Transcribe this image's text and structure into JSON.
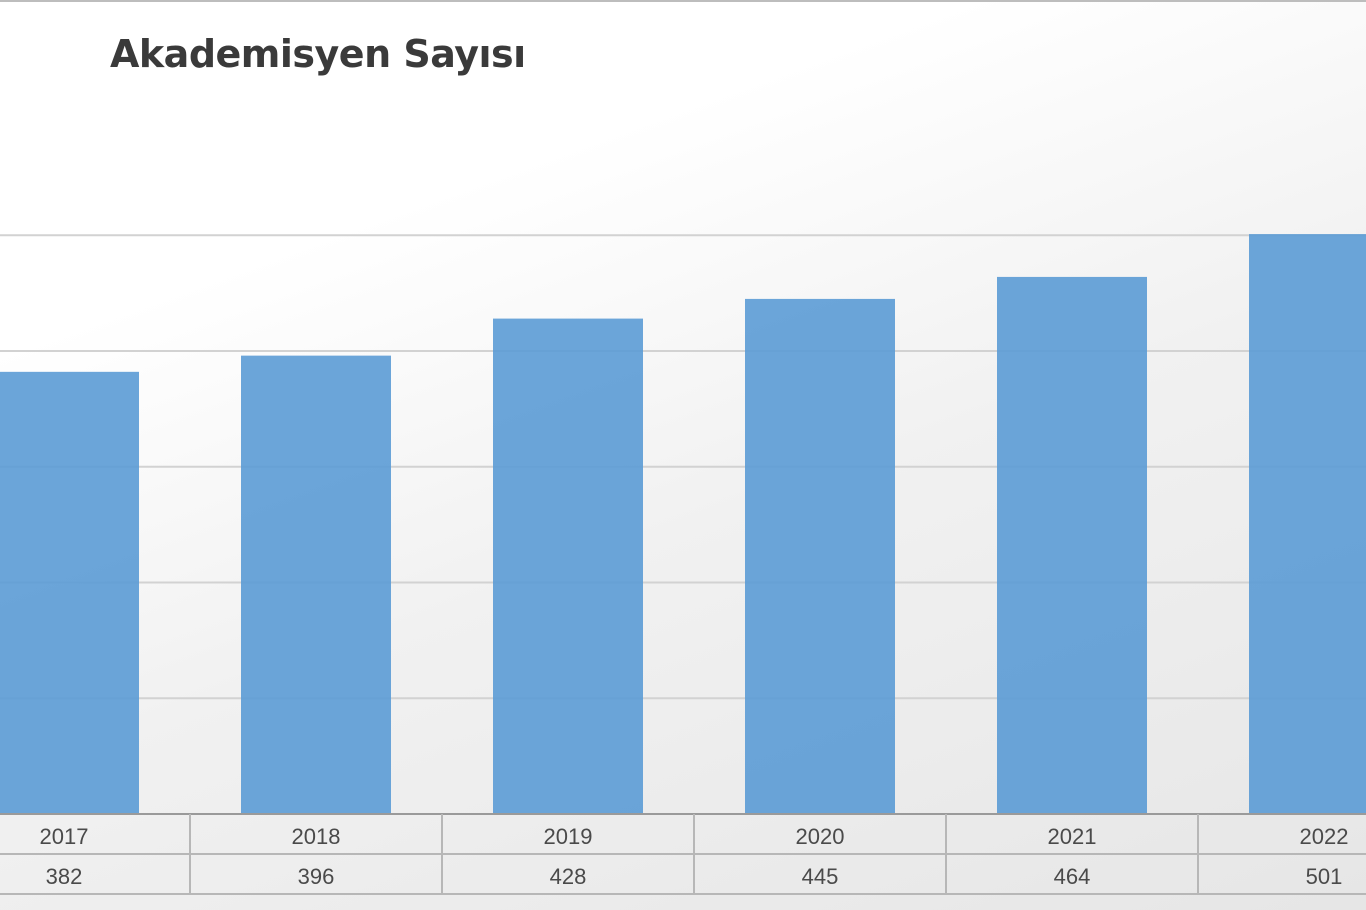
{
  "chart_data": {
    "type": "bar",
    "title": "Akademisyen Sayısı",
    "categories": [
      "2017",
      "2018",
      "2019",
      "2020",
      "2021",
      "2022"
    ],
    "values": [
      382,
      396,
      428,
      445,
      464,
      501
    ],
    "ylim": [
      0,
      600
    ],
    "y_gridlines": [
      100,
      200,
      300,
      400,
      500
    ],
    "grid": true,
    "legend": "none",
    "data_table": true,
    "colors": {
      "bar": "#5b9bd5",
      "title": "#3a3a3a",
      "gridline": "#d2d2d2"
    }
  }
}
